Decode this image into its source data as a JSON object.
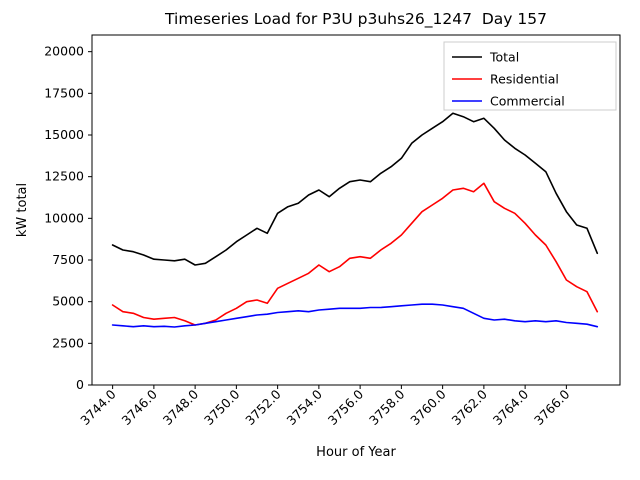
{
  "chart_data": {
    "type": "line",
    "title": "Timeseries Load for P3U p3uhs26_1247  Day 157",
    "xlabel": "Hour of Year",
    "ylabel": "kW total",
    "xlim": [
      3743.0,
      3768.6
    ],
    "ylim": [
      0,
      21000
    ],
    "grid": false,
    "legend_position": "upper right",
    "xticks": [
      "3744.0",
      "3746.0",
      "3748.0",
      "3750.0",
      "3752.0",
      "3754.0",
      "3756.0",
      "3758.0",
      "3760.0",
      "3762.0",
      "3764.0",
      "3766.0"
    ],
    "yticks": [
      0,
      2500,
      5000,
      7500,
      10000,
      12500,
      15000,
      17500,
      20000
    ],
    "x": [
      3744.0,
      3744.5,
      3745.0,
      3745.5,
      3746.0,
      3746.5,
      3747.0,
      3747.5,
      3748.0,
      3748.5,
      3749.0,
      3749.5,
      3750.0,
      3750.5,
      3751.0,
      3751.5,
      3752.0,
      3752.5,
      3753.0,
      3753.5,
      3754.0,
      3754.5,
      3755.0,
      3755.5,
      3756.0,
      3756.5,
      3757.0,
      3757.5,
      3758.0,
      3758.5,
      3759.0,
      3759.5,
      3760.0,
      3760.5,
      3761.0,
      3761.5,
      3762.0,
      3762.5,
      3763.0,
      3763.5,
      3764.0,
      3764.5,
      3765.0,
      3765.5,
      3766.0,
      3766.5,
      3767.0,
      3767.5
    ],
    "series": [
      {
        "name": "Total",
        "color": "#000000",
        "values": [
          8400,
          8100,
          8000,
          7800,
          7550,
          7500,
          7450,
          7550,
          7200,
          7300,
          7700,
          8100,
          8600,
          9000,
          9400,
          9100,
          10300,
          10700,
          10900,
          11400,
          11700,
          11300,
          11800,
          12200,
          12300,
          12200,
          12700,
          13100,
          13600,
          14500,
          15000,
          15400,
          15800,
          16300,
          16100,
          15800,
          16000,
          15400,
          14700,
          14200,
          13800,
          13300,
          12800,
          11500,
          10400,
          9600,
          9400,
          7900
        ]
      },
      {
        "name": "Residential",
        "color": "#ff0000",
        "values": [
          4800,
          4400,
          4300,
          4050,
          3950,
          4000,
          4050,
          3850,
          3600,
          3700,
          3900,
          4300,
          4600,
          5000,
          5100,
          4900,
          5800,
          6100,
          6400,
          6700,
          7200,
          6800,
          7100,
          7600,
          7700,
          7600,
          8100,
          8500,
          9000,
          9700,
          10400,
          10800,
          11200,
          11700,
          11800,
          11600,
          12100,
          11000,
          10600,
          10300,
          9700,
          9000,
          8400,
          7400,
          6300,
          5900,
          5600,
          4400
        ]
      },
      {
        "name": "Commercial",
        "color": "#0000ff",
        "values": [
          3600,
          3550,
          3500,
          3550,
          3500,
          3520,
          3480,
          3550,
          3600,
          3700,
          3800,
          3900,
          4000,
          4100,
          4200,
          4250,
          4350,
          4400,
          4450,
          4400,
          4500,
          4550,
          4600,
          4600,
          4600,
          4650,
          4650,
          4700,
          4750,
          4800,
          4850,
          4850,
          4800,
          4700,
          4600,
          4300,
          4000,
          3900,
          3950,
          3850,
          3800,
          3850,
          3800,
          3850,
          3750,
          3700,
          3650,
          3500
        ]
      }
    ]
  }
}
